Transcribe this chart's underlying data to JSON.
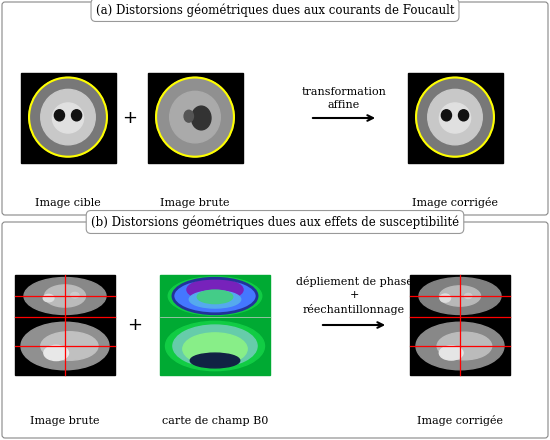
{
  "title_a": "(a) Distorsions géométriques dues aux courants de Foucault",
  "title_b": "(b) Distorsions géométriques dues aux effets de susceptibilité",
  "label_a1": "Image cible",
  "label_a2": "Image brute",
  "label_a3": "Image corrigée",
  "label_b1": "Image brute",
  "label_b2": "carte de champ B0",
  "label_b3": "Image corrigée",
  "text_a_middle": "transformation\naffine",
  "text_b_middle": "dépliement de phase\n+\nréechantillonnage",
  "fig_width": 5.5,
  "fig_height": 4.4,
  "dpi": 100
}
